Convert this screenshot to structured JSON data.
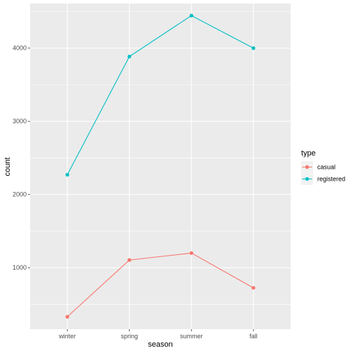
{
  "chart_data": {
    "type": "line",
    "xlabel": "season",
    "ylabel": "count",
    "categories": [
      "winter",
      "spring",
      "summer",
      "fall"
    ],
    "ylim": [
      160,
      4610
    ],
    "yticks": [
      1000,
      2000,
      3000,
      4000
    ],
    "grid": true,
    "legend": {
      "title": "type",
      "position": "right"
    },
    "series": [
      {
        "name": "casual",
        "color": "#F8766D",
        "values": [
          330,
          1105,
          1200,
          725
        ]
      },
      {
        "name": "registered",
        "color": "#00BFC4",
        "values": [
          2270,
          3885,
          4445,
          4000
        ]
      }
    ]
  }
}
